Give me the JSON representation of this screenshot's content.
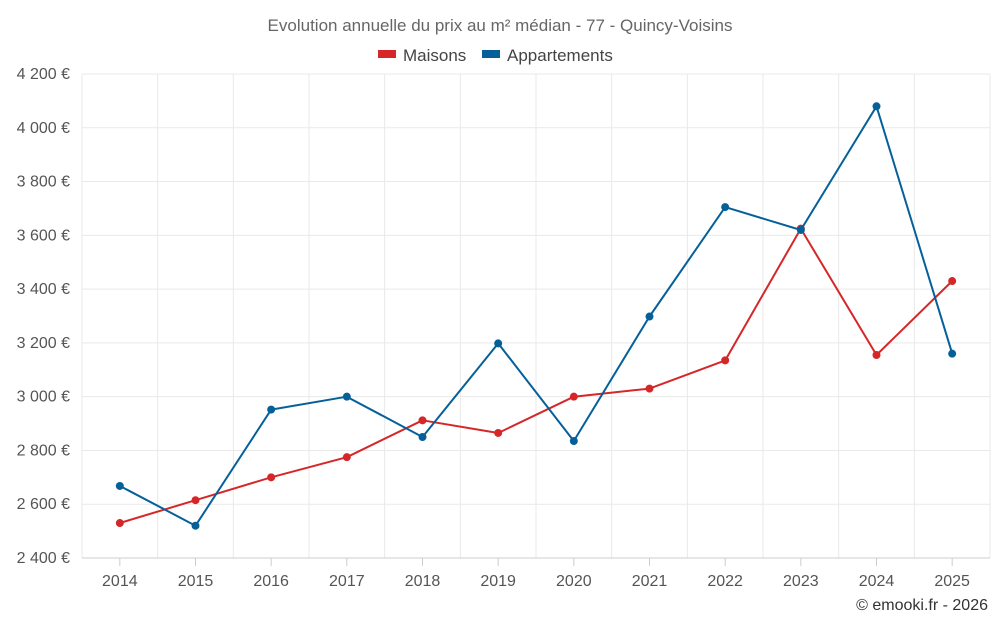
{
  "chart_data": {
    "type": "line",
    "title": "Evolution annuelle du prix au m² médian - 77 - Quincy-Voisins",
    "xlabel": "",
    "ylabel": "",
    "categories": [
      "2014",
      "2015",
      "2016",
      "2017",
      "2018",
      "2019",
      "2020",
      "2021",
      "2022",
      "2023",
      "2024",
      "2025"
    ],
    "ylim": [
      2400,
      4200
    ],
    "yticks": [
      2400,
      2600,
      2800,
      3000,
      3200,
      3400,
      3600,
      3800,
      4000,
      4200
    ],
    "ytick_labels": [
      "2 400 €",
      "2 600 €",
      "2 800 €",
      "3 000 €",
      "3 200 €",
      "3 400 €",
      "3 600 €",
      "3 800 €",
      "4 000 €",
      "4 200 €"
    ],
    "grid": true,
    "legend_position": "top-center",
    "series": [
      {
        "name": "Maisons",
        "color": "#d62728",
        "values": [
          2530,
          2615,
          2700,
          2775,
          2912,
          2865,
          3000,
          3030,
          3135,
          3625,
          3155,
          3430
        ]
      },
      {
        "name": "Appartements",
        "color": "#05609a",
        "values": [
          2668,
          2520,
          2952,
          3000,
          2850,
          3198,
          2835,
          3298,
          3705,
          3620,
          4080,
          3160
        ]
      }
    ]
  },
  "credit": "© emooki.fr - 2026"
}
